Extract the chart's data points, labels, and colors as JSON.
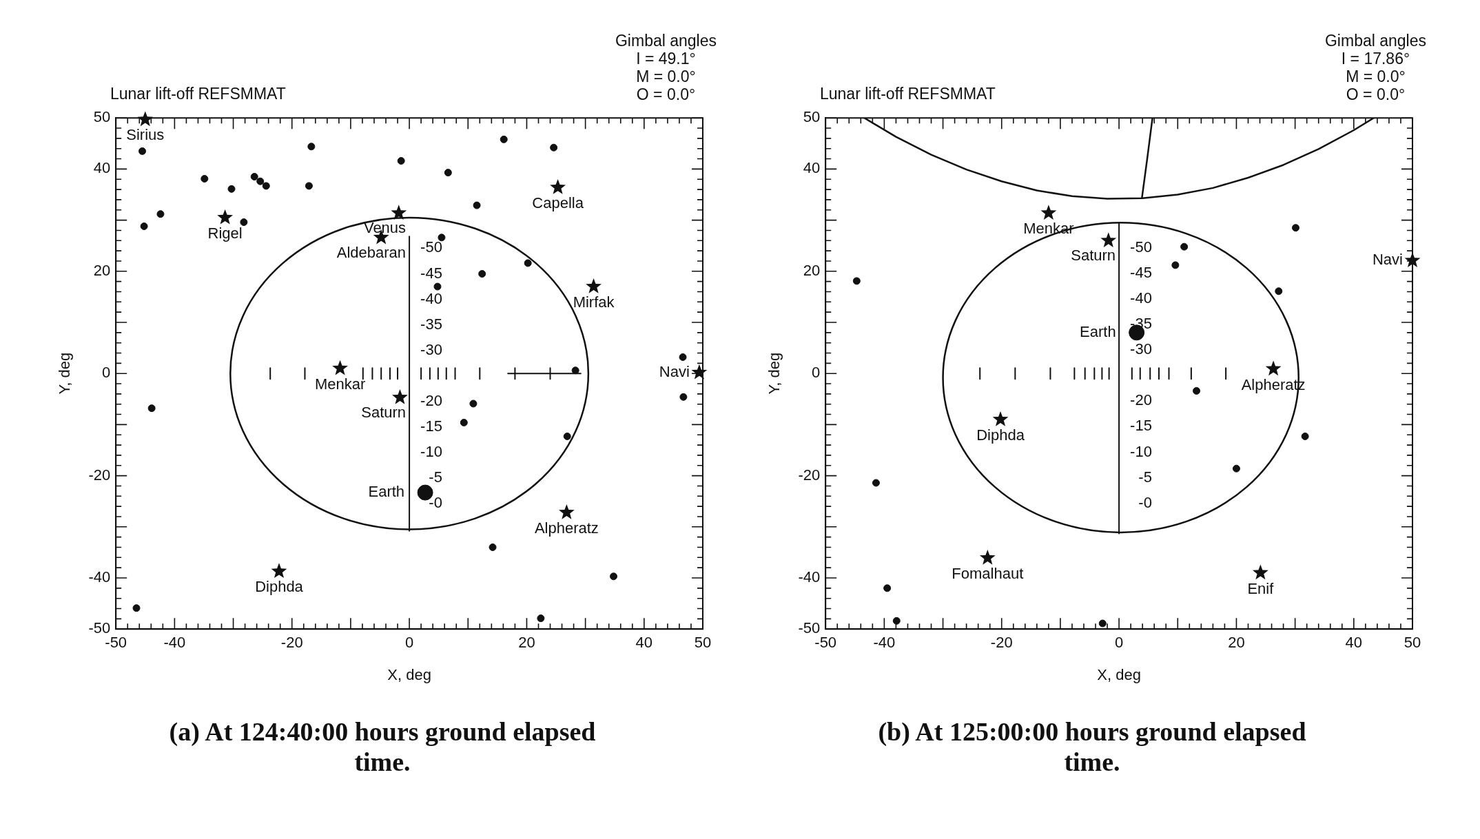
{
  "chart_data": [
    {
      "type": "scatter",
      "title": "Lunar lift-off REFSMMAT",
      "subtitle": "(a)  At 124:40:00 hours ground elapsed time.",
      "xlabel": "X, deg",
      "ylabel": "Y, deg",
      "xlim": [
        -50,
        50
      ],
      "ylim": [
        -50,
        50
      ],
      "y2lim": [
        24.5,
        -75.5
      ],
      "xticks": [
        -50,
        {
          "value": -48,
          "label": null
        },
        {
          "value": -46,
          "label": null
        },
        {
          "value": -44,
          "label": null
        },
        {
          "value": -42,
          "label": null
        },
        -40,
        {
          "value": -38,
          "label": null
        },
        {
          "value": -36,
          "label": null
        },
        {
          "value": -34,
          "label": null
        },
        {
          "value": -32,
          "label": null
        },
        {
          "value": -30,
          "label": null
        },
        {
          "value": -28,
          "label": null
        },
        {
          "value": -26,
          "label": null
        },
        {
          "value": -24,
          "label": null
        },
        {
          "value": -22,
          "label": null
        },
        -20,
        {
          "value": -18,
          "label": null
        },
        {
          "value": -16,
          "label": null
        },
        {
          "value": -14,
          "label": null
        },
        {
          "value": -12,
          "label": null
        },
        {
          "value": -10,
          "label": null
        },
        {
          "value": -8,
          "label": null
        },
        {
          "value": -6,
          "label": null
        },
        {
          "value": -4,
          "label": null
        },
        {
          "value": -2,
          "label": null
        },
        0,
        {
          "value": 2,
          "label": null
        },
        {
          "value": 4,
          "label": null
        },
        {
          "value": 6,
          "label": null
        },
        {
          "value": 8,
          "label": null
        },
        {
          "value": 10,
          "label": null
        },
        {
          "value": 12,
          "label": null
        },
        {
          "value": 14,
          "label": null
        },
        {
          "value": 16,
          "label": null
        },
        {
          "value": 18,
          "label": null
        },
        20,
        {
          "value": 22,
          "label": null
        },
        {
          "value": 24,
          "label": null
        },
        {
          "value": 26,
          "label": null
        },
        {
          "value": 28,
          "label": null
        },
        {
          "value": 30,
          "label": null
        },
        {
          "value": 32,
          "label": null
        },
        {
          "value": 34,
          "label": null
        },
        {
          "value": 36,
          "label": null
        },
        {
          "value": 38,
          "label": null
        },
        40,
        {
          "value": 42,
          "label": null
        },
        {
          "value": 44,
          "label": null
        },
        {
          "value": 46,
          "label": null
        },
        {
          "value": 48,
          "label": null
        },
        50
      ],
      "yticks": [
        -50,
        {
          "value": -48,
          "label": null
        },
        {
          "value": -46,
          "label": null
        },
        {
          "value": -44,
          "label": null
        },
        {
          "value": -42,
          "label": null
        },
        -40,
        {
          "value": -38,
          "label": null
        },
        {
          "value": -36,
          "label": null
        },
        {
          "value": -34,
          "label": null
        },
        {
          "value": -32,
          "label": null
        },
        {
          "value": -30,
          "label": null
        },
        {
          "value": -28,
          "label": null
        },
        {
          "value": -26,
          "label": null
        },
        {
          "value": -24,
          "label": null
        },
        {
          "value": -22,
          "label": null
        },
        -20,
        {
          "value": -18,
          "label": null
        },
        {
          "value": -16,
          "label": null
        },
        {
          "value": -14,
          "label": null
        },
        {
          "value": -12,
          "label": null
        },
        {
          "value": -10,
          "label": null
        },
        {
          "value": -8,
          "label": null
        },
        {
          "value": -6,
          "label": null
        },
        {
          "value": -4,
          "label": null
        },
        {
          "value": -2,
          "label": null
        },
        0,
        {
          "value": 2,
          "label": null
        },
        {
          "value": 4,
          "label": null
        },
        {
          "value": 6,
          "label": null
        },
        {
          "value": 8,
          "label": null
        },
        {
          "value": 10,
          "label": null
        },
        {
          "value": 12,
          "label": null
        },
        {
          "value": 14,
          "label": null
        },
        {
          "value": 16,
          "label": null
        },
        {
          "value": 18,
          "label": null
        },
        20,
        {
          "value": 22,
          "label": null
        },
        {
          "value": 24,
          "label": null
        },
        {
          "value": 26,
          "label": null
        },
        {
          "value": 28,
          "label": null
        },
        {
          "value": 30,
          "label": null
        },
        {
          "value": 32,
          "label": null
        },
        {
          "value": 34,
          "label": null
        },
        {
          "value": 36,
          "label": null
        },
        {
          "value": 38,
          "label": null
        },
        40,
        {
          "value": 42,
          "label": null
        },
        {
          "value": 44,
          "label": null
        },
        {
          "value": 46,
          "label": null
        },
        {
          "value": 48,
          "label": null
        },
        50
      ],
      "y2ticks": [
        -50,
        -45,
        -40,
        -35,
        -30,
        -20,
        -15,
        -10,
        -5,
        {
          "value": 0,
          "label": "-0"
        }
      ],
      "series": [
        {
          "marker": "star",
          "color": "#111111",
          "x": [
            -45,
            -31.4,
            -1.8,
            -4.8,
            25.3,
            31.4,
            -11.8,
            49.4,
            -1.6,
            26.8,
            -22.2
          ],
          "values": [
            49.7,
            30.5,
            31.4,
            26.6,
            36.4,
            17,
            1.0,
            0.2,
            -4.7,
            -27.2,
            -38.7
          ],
          "value_labels": [
            "Sirius",
            "Rigel",
            "Venus",
            "Aldebaran",
            "Capella",
            "Mirfak",
            "Menkar",
            "Navi",
            "Saturn",
            "Alpheratz",
            "Diphda"
          ]
        },
        {
          "marker": "circle",
          "color": "#111111",
          "x": [
            -45.5,
            -16.7,
            16.1,
            24.6,
            -1.4,
            6.6,
            -34.9,
            -26.4,
            -25.4,
            -24.4,
            -30.3,
            -17.1,
            11.5,
            -42.4,
            -45.2,
            -28.2,
            5.5,
            20.2,
            12.4,
            4.8,
            28.3,
            46.6,
            46.7,
            -43.9,
            10.9,
            9.3,
            26.9,
            14.2,
            34.8,
            22.4,
            -46.5
          ],
          "values": [
            43.5,
            44.4,
            45.8,
            44.2,
            41.6,
            39.3,
            38.1,
            38.5,
            37.6,
            36.7,
            36.1,
            36.7,
            32.9,
            31.2,
            28.8,
            29.6,
            26.6,
            21.6,
            19.5,
            17,
            0.6,
            3.2,
            -4.6,
            -6.8,
            -5.9,
            -9.6,
            -12.3,
            -34,
            -39.7,
            -47.9,
            -45.9
          ]
        },
        {
          "type": "bubble",
          "marker": "circle",
          "color": "#111111",
          "x": [
            2.7
          ],
          "values": [
            -23.3
          ],
          "sizes": [
            1
          ],
          "value_labels": [
            "Earth"
          ]
        }
      ],
      "annotations": [
        "Gimbal angles",
        "I = 49.1°",
        "M = 0.0°",
        "O = 0.0°"
      ]
    },
    {
      "type": "scatter",
      "title": "Lunar lift-off REFSMMAT",
      "subtitle": "(b)  At 125:00:00 hours ground elapsed time.",
      "xlabel": "X, deg",
      "ylabel": "Y, deg",
      "xlim": [
        -50,
        50
      ],
      "ylim": [
        -50,
        50
      ],
      "y2lim": [
        24.6,
        -75.4
      ],
      "xticks": [
        -50,
        {
          "value": -48,
          "label": null
        },
        {
          "value": -46,
          "label": null
        },
        {
          "value": -44,
          "label": null
        },
        {
          "value": -42,
          "label": null
        },
        -40,
        {
          "value": -38,
          "label": null
        },
        {
          "value": -36,
          "label": null
        },
        {
          "value": -34,
          "label": null
        },
        {
          "value": -32,
          "label": null
        },
        {
          "value": -30,
          "label": null
        },
        {
          "value": -28,
          "label": null
        },
        {
          "value": -26,
          "label": null
        },
        {
          "value": -24,
          "label": null
        },
        {
          "value": -22,
          "label": null
        },
        -20,
        {
          "value": -18,
          "label": null
        },
        {
          "value": -16,
          "label": null
        },
        {
          "value": -14,
          "label": null
        },
        {
          "value": -12,
          "label": null
        },
        {
          "value": -10,
          "label": null
        },
        {
          "value": -8,
          "label": null
        },
        {
          "value": -6,
          "label": null
        },
        {
          "value": -4,
          "label": null
        },
        {
          "value": -2,
          "label": null
        },
        0,
        {
          "value": 2,
          "label": null
        },
        {
          "value": 4,
          "label": null
        },
        {
          "value": 6,
          "label": null
        },
        {
          "value": 8,
          "label": null
        },
        {
          "value": 10,
          "label": null
        },
        {
          "value": 12,
          "label": null
        },
        {
          "value": 14,
          "label": null
        },
        {
          "value": 16,
          "label": null
        },
        {
          "value": 18,
          "label": null
        },
        20,
        {
          "value": 22,
          "label": null
        },
        {
          "value": 24,
          "label": null
        },
        {
          "value": 26,
          "label": null
        },
        {
          "value": 28,
          "label": null
        },
        {
          "value": 30,
          "label": null
        },
        {
          "value": 32,
          "label": null
        },
        {
          "value": 34,
          "label": null
        },
        {
          "value": 36,
          "label": null
        },
        {
          "value": 38,
          "label": null
        },
        40,
        {
          "value": 42,
          "label": null
        },
        {
          "value": 44,
          "label": null
        },
        {
          "value": 46,
          "label": null
        },
        {
          "value": 48,
          "label": null
        },
        50
      ],
      "yticks": [
        -50,
        {
          "value": -48,
          "label": null
        },
        {
          "value": -46,
          "label": null
        },
        {
          "value": -44,
          "label": null
        },
        {
          "value": -42,
          "label": null
        },
        -40,
        {
          "value": -38,
          "label": null
        },
        {
          "value": -36,
          "label": null
        },
        {
          "value": -34,
          "label": null
        },
        {
          "value": -32,
          "label": null
        },
        {
          "value": -30,
          "label": null
        },
        {
          "value": -28,
          "label": null
        },
        {
          "value": -26,
          "label": null
        },
        {
          "value": -24,
          "label": null
        },
        {
          "value": -22,
          "label": null
        },
        -20,
        {
          "value": -18,
          "label": null
        },
        {
          "value": -16,
          "label": null
        },
        {
          "value": -14,
          "label": null
        },
        {
          "value": -12,
          "label": null
        },
        {
          "value": -10,
          "label": null
        },
        {
          "value": -8,
          "label": null
        },
        {
          "value": -6,
          "label": null
        },
        {
          "value": -4,
          "label": null
        },
        {
          "value": -2,
          "label": null
        },
        0,
        {
          "value": 2,
          "label": null
        },
        {
          "value": 4,
          "label": null
        },
        {
          "value": 6,
          "label": null
        },
        {
          "value": 8,
          "label": null
        },
        {
          "value": 10,
          "label": null
        },
        {
          "value": 12,
          "label": null
        },
        {
          "value": 14,
          "label": null
        },
        {
          "value": 16,
          "label": null
        },
        {
          "value": 18,
          "label": null
        },
        20,
        {
          "value": 22,
          "label": null
        },
        {
          "value": 24,
          "label": null
        },
        {
          "value": 26,
          "label": null
        },
        {
          "value": 28,
          "label": null
        },
        {
          "value": 30,
          "label": null
        },
        {
          "value": 32,
          "label": null
        },
        {
          "value": 34,
          "label": null
        },
        {
          "value": 36,
          "label": null
        },
        {
          "value": 38,
          "label": null
        },
        40,
        {
          "value": 42,
          "label": null
        },
        {
          "value": 44,
          "label": null
        },
        {
          "value": 46,
          "label": null
        },
        {
          "value": 48,
          "label": null
        },
        50
      ],
      "y2ticks": [
        -50,
        -45,
        -40,
        -35,
        -30,
        -20,
        -15,
        -10,
        -5,
        {
          "value": 0,
          "label": "-0"
        }
      ],
      "series": [
        {
          "marker": "star",
          "color": "#111111",
          "x": [
            -12,
            -1.8,
            50,
            26.3,
            -20.2,
            -22.4,
            24.1
          ],
          "values": [
            31.4,
            26,
            22.1,
            0.9,
            -9,
            -36.1,
            -39
          ],
          "value_labels": [
            "Menkar",
            "Saturn",
            "Navi",
            "Alpheratz",
            "Diphda",
            "Fomalhaut",
            "Enif"
          ]
        },
        {
          "marker": "circle",
          "color": "#111111",
          "x": [
            -44.7,
            30.1,
            11.1,
            9.6,
            27.2,
            13.2,
            31.7,
            20,
            -41.4,
            -39.5,
            -37.9,
            -2.8
          ],
          "values": [
            18.1,
            28.5,
            24.8,
            21.2,
            16.1,
            -3.4,
            -12.3,
            -18.6,
            -21.4,
            -42,
            -48.4,
            -48.9
          ]
        },
        {
          "type": "bubble",
          "marker": "circle",
          "color": "#111111",
          "x": [
            3.0
          ],
          "values": [
            8.0
          ],
          "sizes": [
            1
          ],
          "value_labels": [
            "Earth"
          ]
        },
        {
          "type": "line",
          "marker": "none",
          "color": "#111111",
          "x": [
            -43.4,
            -38,
            -32,
            -26,
            -20,
            -14,
            -8,
            -2,
            4,
            10,
            16,
            22,
            28,
            34,
            40,
            43.4
          ],
          "values": [
            50,
            46.3,
            42.8,
            39.9,
            37.6,
            35.8,
            34.7,
            34.2,
            34.3,
            35,
            36.3,
            38.3,
            40.8,
            43.9,
            47.6,
            50
          ]
        },
        {
          "type": "line",
          "marker": "none",
          "color": "#111111",
          "x": [
            3.9,
            4.8,
            5.7
          ],
          "values": [
            34.3,
            42,
            50
          ]
        }
      ],
      "annotations": [
        "Gimbal angles",
        "I = 17.86°",
        "M = 0.0°",
        "O = 0.0°"
      ]
    }
  ]
}
